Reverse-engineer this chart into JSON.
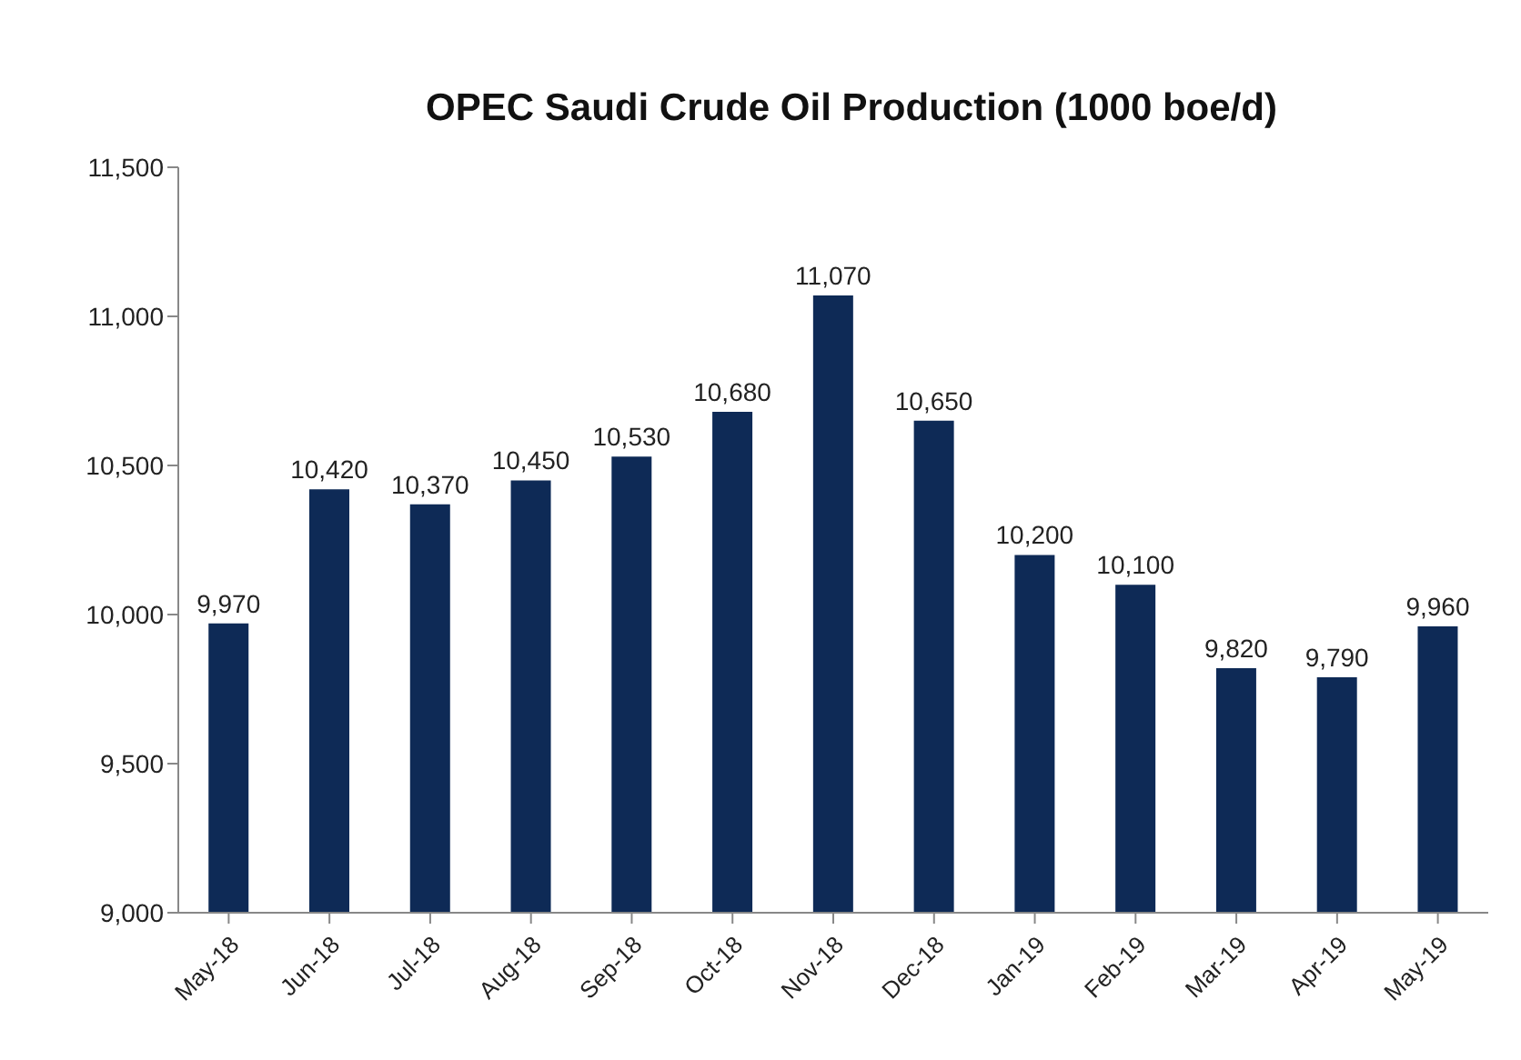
{
  "chart_data": {
    "type": "bar",
    "title": "OPEC Saudi Crude Oil Production (1000 boe/d)",
    "categories": [
      "May-18",
      "Jun-18",
      "Jul-18",
      "Aug-18",
      "Sep-18",
      "Oct-18",
      "Nov-18",
      "Dec-18",
      "Jan-19",
      "Feb-19",
      "Mar-19",
      "Apr-19",
      "May-19"
    ],
    "values": [
      9970,
      10420,
      10370,
      10450,
      10530,
      10680,
      11070,
      10650,
      10200,
      10100,
      9820,
      9790,
      9960
    ],
    "value_labels": [
      "9,970",
      "10,420",
      "10,370",
      "10,450",
      "10,530",
      "10,680",
      "11,070",
      "10,650",
      "10,200",
      "10,100",
      "9,820",
      "9,790",
      "9,960"
    ],
    "color": "#0e2a56",
    "ylim": [
      9000,
      11500
    ],
    "yticks": [
      {
        "value": 9000,
        "label": "9,000"
      },
      {
        "value": 9500,
        "label": "9,500"
      },
      {
        "value": 10000,
        "label": "10,000"
      },
      {
        "value": 10500,
        "label": "10,500"
      },
      {
        "value": 11000,
        "label": "11,000"
      },
      {
        "value": 11500,
        "label": "11,500"
      }
    ],
    "grid": false,
    "legend": false
  }
}
